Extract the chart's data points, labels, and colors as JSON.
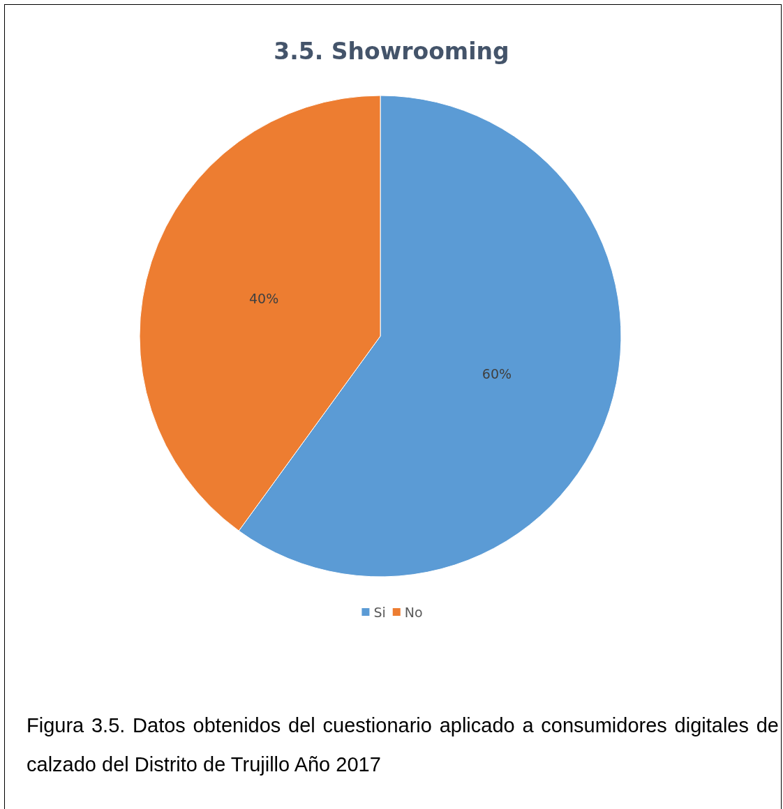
{
  "chart_data": {
    "type": "pie",
    "title": "3.5. Showrooming",
    "categories": [
      "Si",
      "No"
    ],
    "values": [
      60,
      40
    ],
    "colors": [
      "#5b9bd5",
      "#ed7d31"
    ],
    "value_labels": [
      "60%",
      "40%"
    ],
    "legend": "bottom",
    "annotations": [
      "Figura 3.5. Datos obtenidos del cuestionario aplicado a consumidores digitales de calzado del Distrito de Trujillo Año 2017"
    ]
  }
}
